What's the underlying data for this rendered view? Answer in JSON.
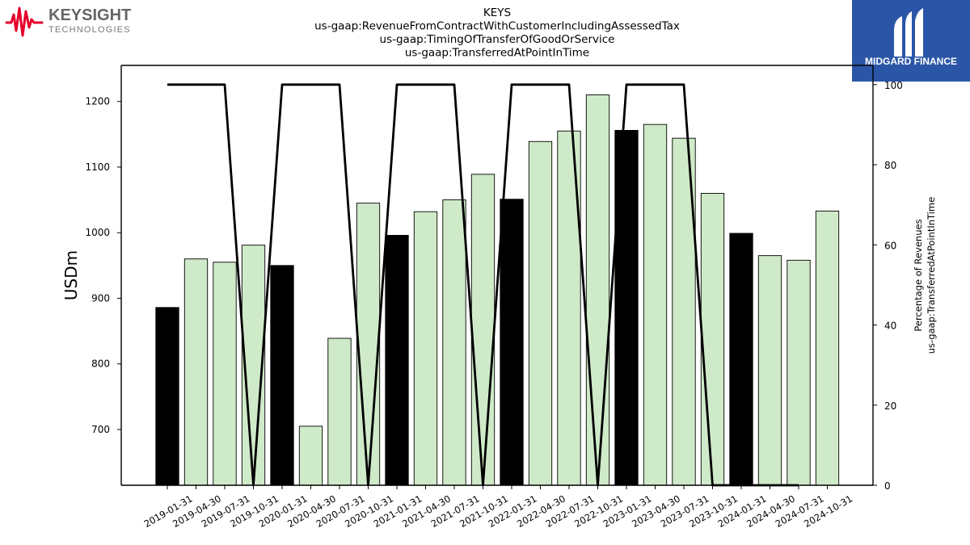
{
  "header": {
    "left_logo": {
      "name": "KEYSIGHT",
      "sub": "TECHNOLOGIES",
      "color": "#e4002b"
    },
    "right_logo": {
      "name": "MIDGARD FINANCE",
      "color": "#2b56a7"
    }
  },
  "chart_data": {
    "type": "bar",
    "title": [
      "KEYS",
      "us-gaap:RevenueFromContractWithCustomerIncludingAssessedTax",
      "us-gaap:TimingOfTransferOfGoodOrService",
      "us-gaap:TransferredAtPointInTime"
    ],
    "ylabel": "USDm",
    "y2label": [
      "Percentage of Revenues",
      "us-gaap:TransferredAtPointInTime"
    ],
    "ylim": [
      615,
      1255
    ],
    "y2lim": [
      0,
      104.8
    ],
    "yticks": [
      700,
      800,
      900,
      1000,
      1100,
      1200
    ],
    "y2ticks": [
      0,
      20,
      40,
      60,
      80,
      100
    ],
    "categories": [
      "2019-01-31",
      "2019-04-30",
      "2019-07-31",
      "2019-10-31",
      "2020-01-31",
      "2020-04-30",
      "2020-07-31",
      "2020-10-31",
      "2021-01-31",
      "2021-04-30",
      "2021-07-31",
      "2021-10-31",
      "2022-01-31",
      "2022-04-30",
      "2022-07-31",
      "2022-10-31",
      "2023-01-31",
      "2023-04-30",
      "2023-07-31",
      "2023-10-31",
      "2024-01-31",
      "2024-04-30",
      "2024-07-31",
      "2024-10-31"
    ],
    "series": [
      {
        "type": "bar",
        "values": [
          886,
          960,
          955,
          981,
          950,
          705,
          839,
          1045,
          996,
          1032,
          1050,
          1089,
          1051,
          1139,
          1155,
          1210,
          1156,
          1165,
          1144,
          1060,
          999,
          965,
          958,
          1033
        ],
        "highlight_color": "#000000",
        "base_color": "#cfeac8",
        "highlight_indices": [
          0,
          4,
          8,
          12,
          16,
          20
        ]
      },
      {
        "type": "line",
        "axis": "right",
        "values": [
          100,
          100,
          100,
          0,
          100,
          100,
          100,
          0,
          100,
          100,
          100,
          0,
          100,
          100,
          100,
          0,
          100,
          100,
          100,
          0,
          0,
          0,
          0,
          null
        ],
        "color": "#000000"
      }
    ],
    "grid": false,
    "legend": "none"
  }
}
